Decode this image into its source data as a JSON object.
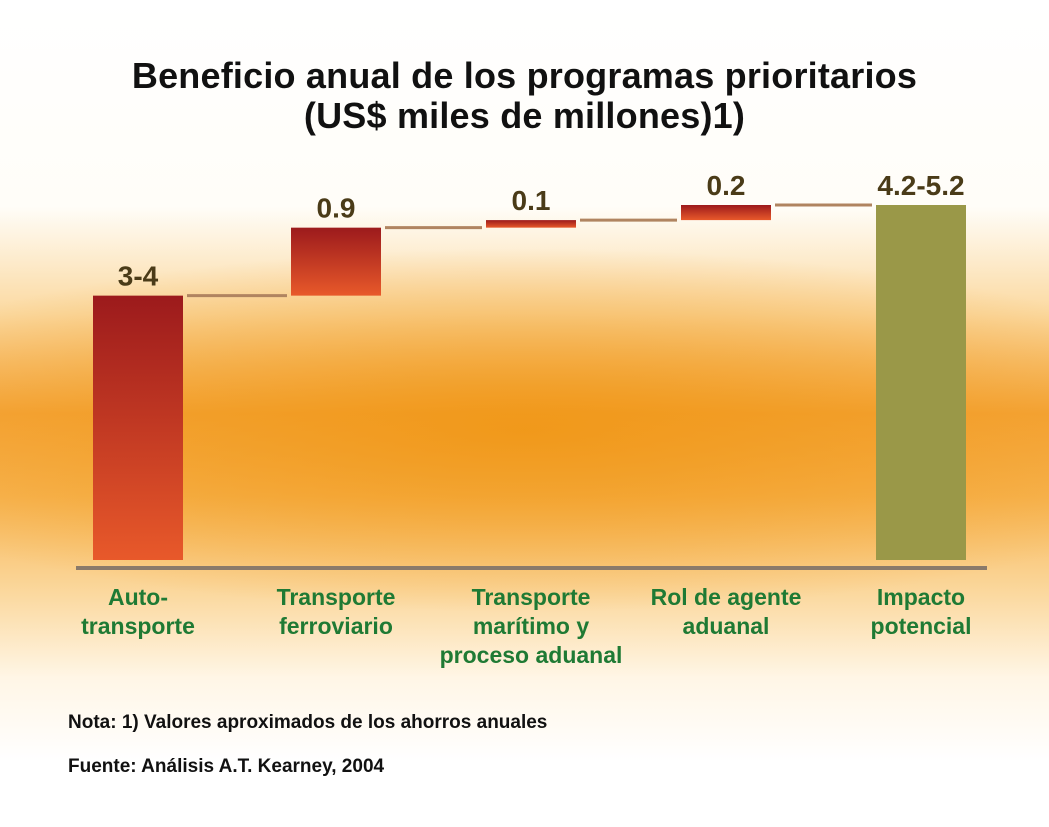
{
  "chart_data": {
    "type": "bar",
    "subtype": "waterfall",
    "title": "Beneficio anual de los programas prioritarios",
    "subtitle": "(US$ miles de millones)1)",
    "categories": [
      "Auto-\ntransporte",
      "Transporte\nferroviario",
      "Transporte\nmarítimo y\nproceso aduanal",
      "Rol de agente\naduanal",
      "Impacto\npotencial"
    ],
    "value_labels": [
      "3-4",
      "0.9",
      "0.1",
      "0.2",
      "4.2-5.2"
    ],
    "values": [
      3.5,
      0.9,
      0.1,
      0.2,
      4.7
    ],
    "bar_kind": [
      "increase",
      "increase",
      "increase",
      "increase",
      "total"
    ],
    "ylim": [
      0,
      4.7
    ],
    "xlabel": "",
    "ylabel": "",
    "grid": false
  },
  "colors": {
    "increase_top": "#9c1a1c",
    "increase_bottom": "#e8592a",
    "total": "#9a9848",
    "connector": "#b08460",
    "axis": "#8a7a6a",
    "category_text": "#1f7a34",
    "value_text": "#4a3b18"
  },
  "notes": {
    "note": "Nota: 1) Valores aproximados de los ahorros anuales",
    "source": "Fuente: Análisis A.T. Kearney, 2004"
  }
}
